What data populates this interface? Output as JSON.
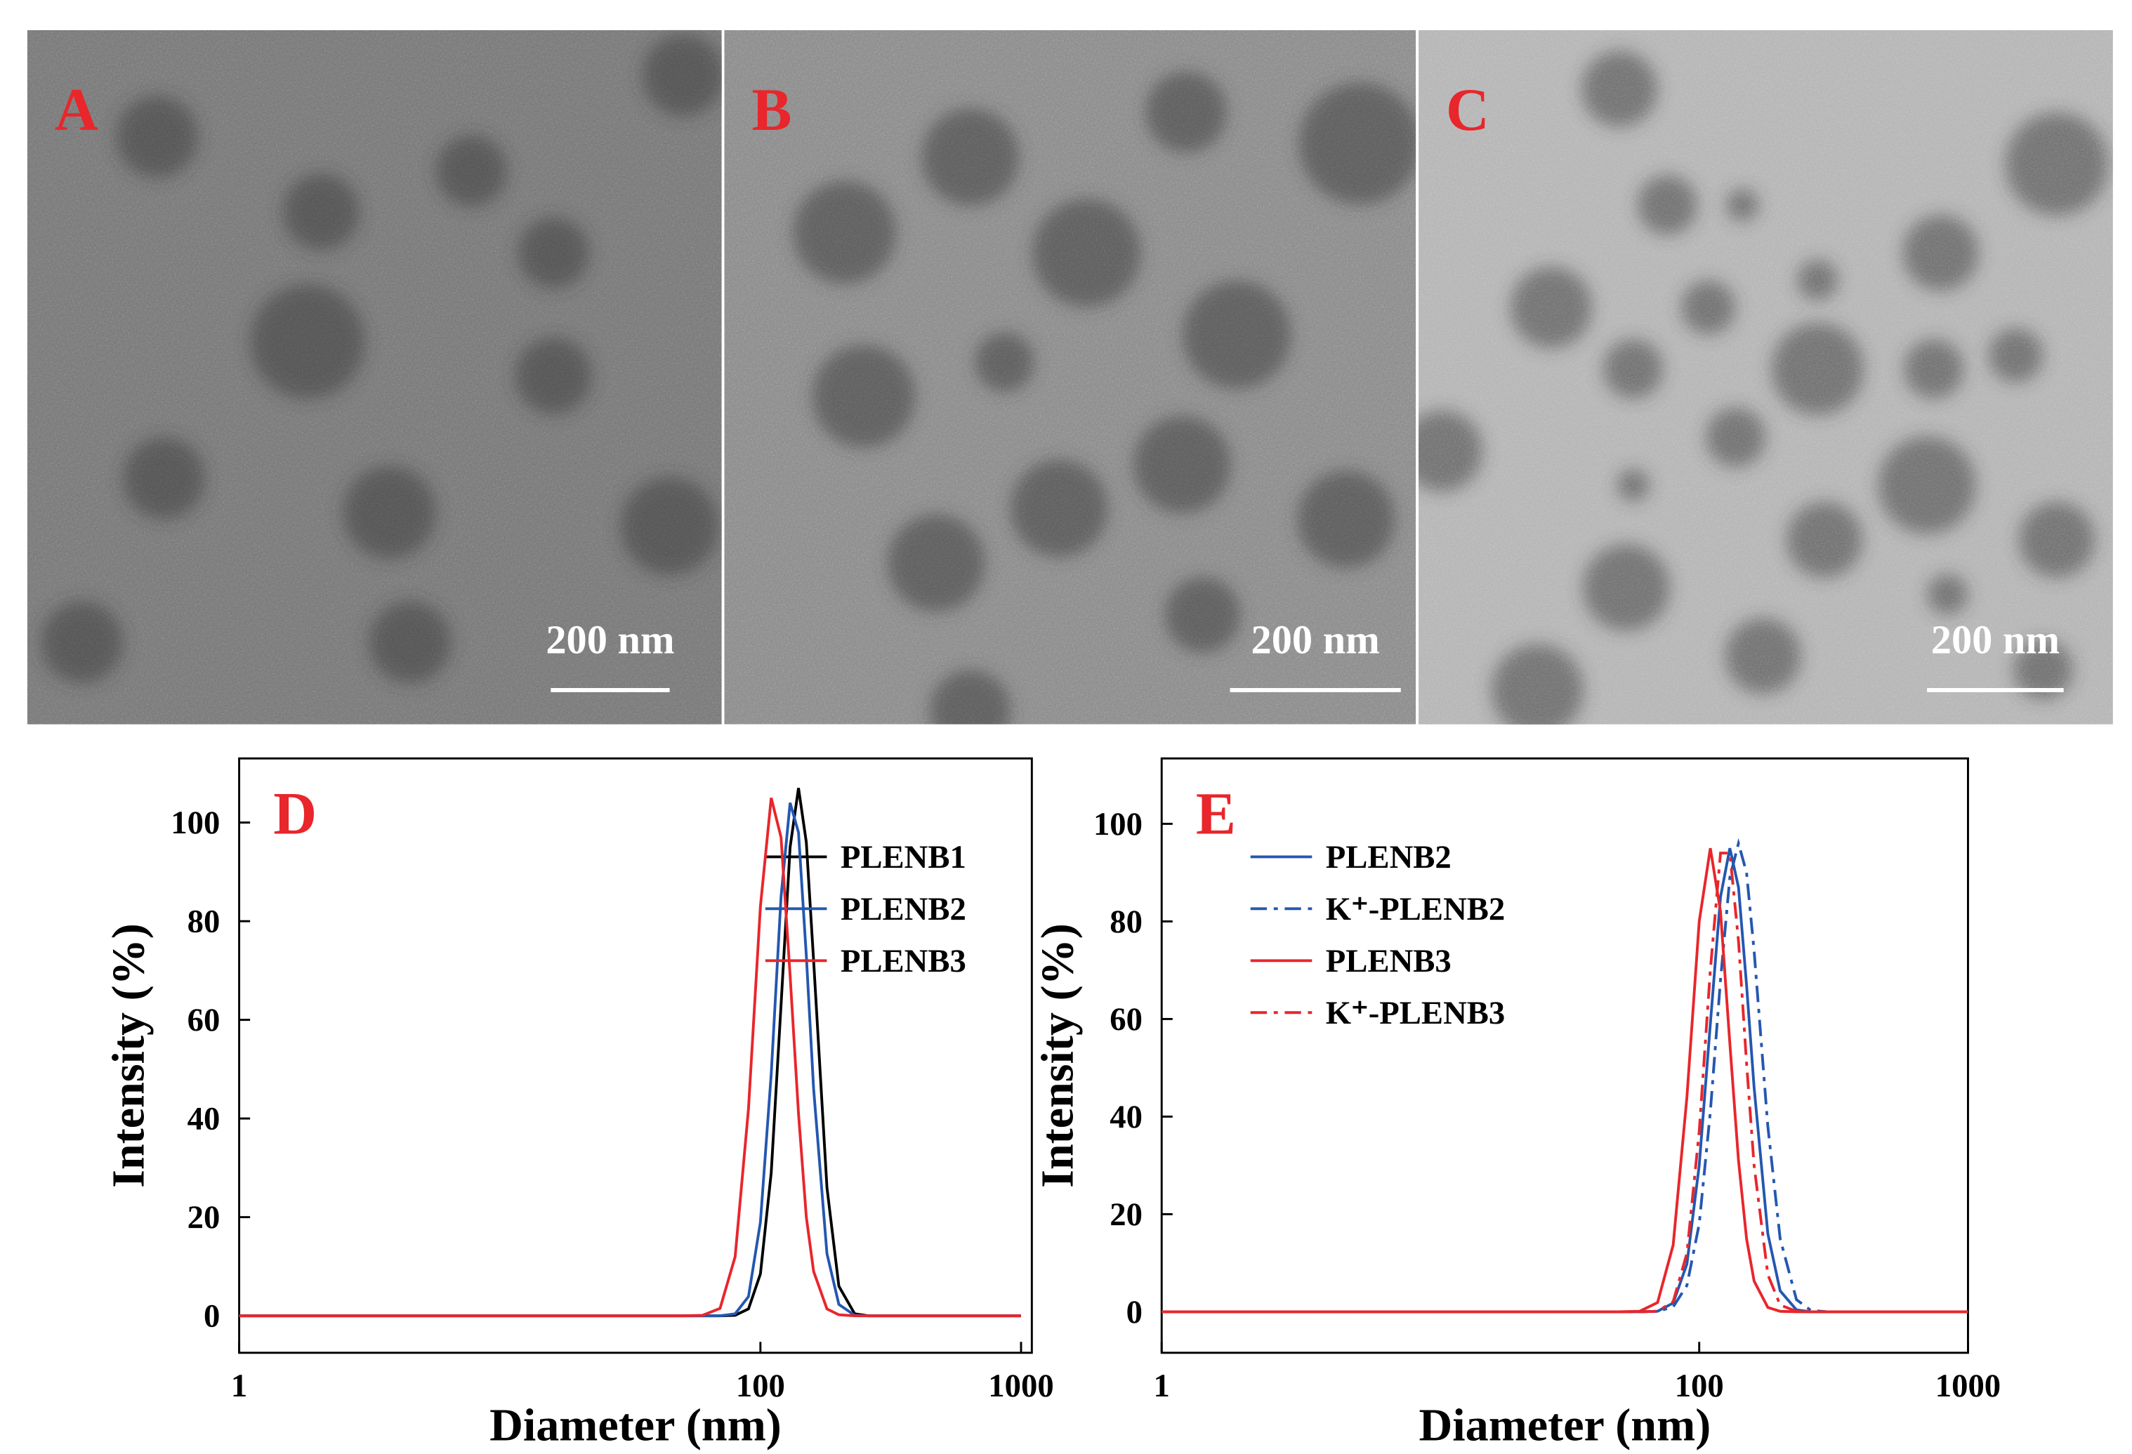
{
  "images": [
    {
      "label": "A",
      "scale_bar": "200 nm"
    },
    {
      "label": "B",
      "scale_bar": "200 nm"
    },
    {
      "label": "C",
      "scale_bar": "200 nm"
    }
  ],
  "chart_data": [
    {
      "type": "line",
      "label": "D",
      "x_label": "Diameter (nm)",
      "y_label": "Intensity (%)",
      "x_scale": "log",
      "legend_position": "upper right",
      "x": [
        1,
        50,
        60,
        70,
        80,
        90,
        100,
        110,
        120,
        130,
        140,
        150,
        160,
        180,
        200,
        230,
        260,
        300,
        1000
      ],
      "xlim": [
        1,
        1100
      ],
      "xticks": [
        1,
        100,
        1000
      ],
      "ylim": [
        -7.5,
        113
      ],
      "yticks": [
        0,
        20,
        40,
        60,
        80,
        100
      ],
      "series": [
        {
          "name": "PLENB1",
          "color": "#000000",
          "values": [
            0,
            0,
            0,
            0,
            0.1,
            1.4,
            8.5,
            29,
            63,
            95,
            107,
            96,
            72,
            26,
            6,
            0.4,
            0,
            0,
            0
          ]
        },
        {
          "name": "PLENB2",
          "color": "#2457b0",
          "values": [
            0,
            0,
            0,
            0,
            0.4,
            3.9,
            19,
            49,
            85,
            104,
            98,
            73,
            46,
            12.6,
            2.3,
            0.1,
            0,
            0,
            0
          ]
        },
        {
          "name": "PLENB3",
          "color": "#e8262b",
          "values": [
            0,
            0,
            0.1,
            1.5,
            12,
            42,
            83,
            105,
            97,
            69,
            41,
            20,
            9,
            1.4,
            0.2,
            0,
            0,
            0,
            0
          ]
        }
      ]
    },
    {
      "type": "line",
      "label": "E",
      "x_label": "Diameter (nm)",
      "y_label": "Intensity (%)",
      "x_scale": "log",
      "legend_position": "upper left",
      "x": [
        1,
        50,
        60,
        70,
        80,
        90,
        100,
        110,
        120,
        130,
        140,
        150,
        160,
        180,
        200,
        230,
        260,
        300,
        1000
      ],
      "xlim": [
        1,
        1000
      ],
      "xticks": [
        1,
        100,
        1000
      ],
      "ylim": [
        -8.4,
        113.4
      ],
      "yticks": [
        0,
        20,
        40,
        60,
        80,
        100
      ],
      "series": [
        {
          "name": "PLENB2",
          "color": "#2457b0",
          "line_style": "solid",
          "values": [
            0,
            0,
            0,
            0.1,
            1.8,
            9.8,
            30,
            59,
            85,
            95,
            87,
            67,
            46,
            16,
            4.3,
            0.4,
            0,
            0,
            0
          ]
        },
        {
          "name": "K⁺-PLENB2",
          "color": "#2457b0",
          "line_style": "dashdot",
          "values": [
            0,
            0,
            0,
            0.1,
            1,
            5.4,
            18,
            41,
            68,
            89,
            96,
            90,
            74,
            38,
            15,
            2.5,
            0.3,
            0,
            0
          ]
        },
        {
          "name": "PLENB3",
          "color": "#e8262b",
          "line_style": "solid",
          "values": [
            0,
            0,
            0.1,
            1.9,
            13.7,
            44,
            80,
            95,
            82,
            55,
            31,
            15,
            6.3,
            0.9,
            0.1,
            0,
            0,
            0,
            0
          ]
        },
        {
          "name": "K⁺-PLENB3",
          "color": "#e8262b",
          "line_style": "dashdot",
          "values": [
            0,
            0,
            0,
            0.1,
            2.1,
            12,
            37,
            70,
            94,
            94,
            76,
            51,
            30,
            7.6,
            1.4,
            0.1,
            0,
            0,
            0
          ]
        }
      ]
    }
  ]
}
